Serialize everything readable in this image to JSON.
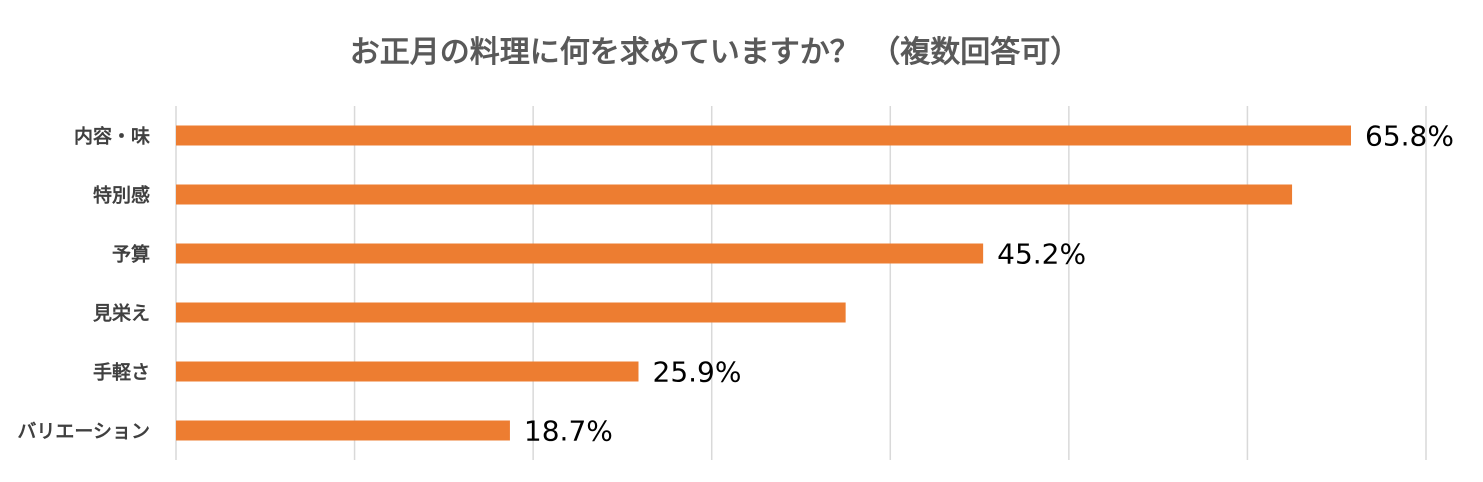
{
  "chart_data": {
    "type": "bar",
    "orientation": "horizontal",
    "title": "お正月の料理に何を求めていますか？ （複数回答可）",
    "xlabel": "",
    "ylabel": "",
    "categories": [
      "内容・味",
      "特別感",
      "予算",
      "見栄え",
      "手軽さ",
      "バリエーション"
    ],
    "values": [
      65.8,
      62.5,
      45.2,
      37.5,
      25.9,
      18.7
    ],
    "data_labels": [
      "65.8%",
      "",
      "45.2%",
      "",
      "25.9%",
      "18.7%"
    ],
    "xlim": [
      0,
      70
    ],
    "grid": true,
    "legend": "none",
    "bar_color": "#ED7D31"
  }
}
